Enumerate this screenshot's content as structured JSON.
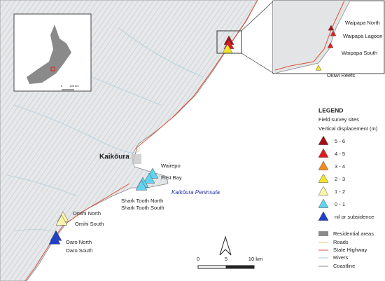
{
  "map": {
    "town": "Kaikōura",
    "peninsula": "Kaikōura Peninsula"
  },
  "sites": [
    {
      "label": "Wairepo",
      "class": 5
    },
    {
      "label": "First Bay",
      "class": 5
    },
    {
      "label": "Shark Tooth North",
      "class": 5
    },
    {
      "label": "Shark Tooth South",
      "class": 5
    },
    {
      "label": "Omihi North",
      "class": 4
    },
    {
      "label": "Omihi South",
      "class": 4
    },
    {
      "label": "Oaro North",
      "class": 6
    },
    {
      "label": "Oaro South",
      "class": 6
    },
    {
      "label": "Waipapa North",
      "class": 0
    },
    {
      "label": "Waipapa Lagoon",
      "class": 1
    },
    {
      "label": "Waipapa South",
      "class": 1
    },
    {
      "label": "Okiwi Reefs",
      "class": 3
    }
  ],
  "legend": {
    "title": "LEGEND",
    "subtitle": "Field survey sites",
    "heading": "Vertical displacement (m)",
    "classes": [
      {
        "label": "5 - 6",
        "color": "#a50f15"
      },
      {
        "label": "4 - 5",
        "color": "#e31a1c"
      },
      {
        "label": "3 - 4",
        "color": "#f28c1e"
      },
      {
        "label": "2 - 3",
        "color": "#f5e52a"
      },
      {
        "label": "1 - 2",
        "color": "#fbf5a8"
      },
      {
        "label": "0 - 1",
        "color": "#5fd3f0"
      },
      {
        "label": "nil or subsidence",
        "color": "#1f3ec9"
      }
    ],
    "layers": [
      "Residential areas",
      "Roads",
      "State Highway",
      "Rivers",
      "Coastline"
    ]
  },
  "scale": {
    "labels": [
      "0",
      "5",
      "10 km"
    ]
  },
  "inset_scale": {
    "labels": [
      "0",
      "200 km"
    ]
  }
}
